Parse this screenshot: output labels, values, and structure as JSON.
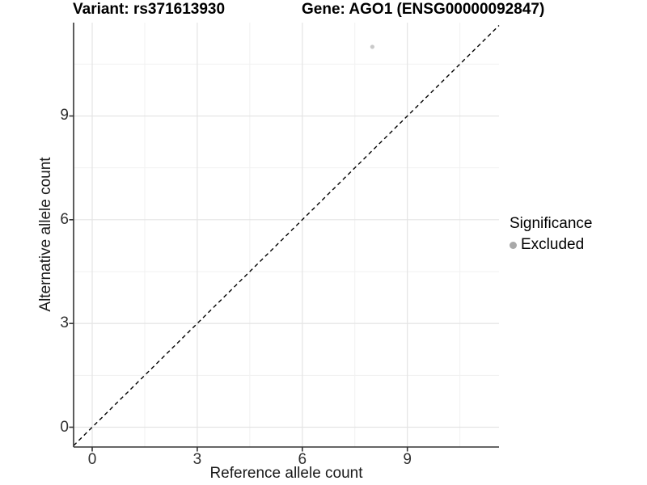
{
  "titles": {
    "variant": "Variant: rs371613930",
    "gene": "Gene: AGO1 (ENSG00000092847)"
  },
  "axes": {
    "x_label": "Reference allele count",
    "y_label": "Alternative allele count"
  },
  "legend": {
    "title": "Significance",
    "items": [
      {
        "label": "Excluded",
        "color": "#a9a9a9"
      }
    ]
  },
  "chart_data": {
    "type": "scatter",
    "title": "Variant: rs371613930 | Gene: AGO1 (ENSG00000092847)",
    "xlabel": "Reference allele count",
    "ylabel": "Alternative allele count",
    "x": {
      "ticks": [
        0,
        3,
        6,
        9
      ],
      "minor_ticks": [
        1.5,
        4.5,
        7.5,
        10.5
      ],
      "range": [
        -0.55,
        11.62
      ]
    },
    "y": {
      "ticks": [
        0,
        3,
        6,
        9
      ],
      "minor_ticks": [
        1.5,
        4.5,
        7.5,
        10.5
      ],
      "range": [
        -0.57,
        11.7
      ]
    },
    "series": [
      {
        "name": "Excluded",
        "color": "#c9c9c9",
        "points": [
          {
            "x": 8,
            "y": 11
          }
        ]
      }
    ],
    "reference_line": {
      "kind": "identity",
      "equation": "y = x",
      "style": "dashed",
      "color": "#000000"
    },
    "grid": "on",
    "legend_position": "right",
    "style": {
      "grid_major_color": "#e4e4e4",
      "grid_minor_color": "#f1f1f1",
      "axis_line_color": "#333333",
      "point_radius": 2.6,
      "background": "#ffffff"
    }
  }
}
